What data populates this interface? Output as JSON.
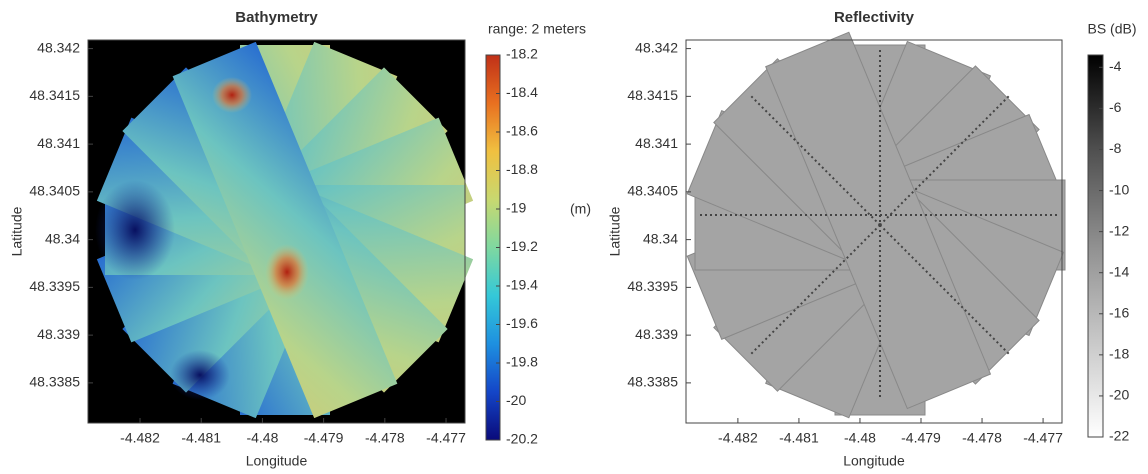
{
  "chart_data": [
    {
      "type": "heatmap",
      "title": "Bathymetry",
      "xlabel": "Longitude",
      "ylabel": "Latitude",
      "xlim": [
        -4.48285,
        -4.47669
      ],
      "xticks": [
        -4.482,
        -4.481,
        -4.48,
        -4.479,
        -4.478,
        -4.477
      ],
      "ylim": [
        48.33808,
        48.34209
      ],
      "yticks": [
        48.3385,
        48.339,
        48.3395,
        48.34,
        48.3405,
        48.341,
        48.3415,
        48.342
      ],
      "annotation": "range: 2 meters",
      "colorbar": {
        "label": "(m)",
        "lim": [
          -20.2,
          -18.2
        ],
        "ticks": [
          -18.2,
          -18.4,
          -18.6,
          -18.8,
          -19,
          -19.2,
          -19.4,
          -19.6,
          -19.8,
          -20,
          -20.2
        ],
        "colormap": [
          "#0a0a7a",
          "#1446c8",
          "#1e90e0",
          "#34c8d8",
          "#7fd8a0",
          "#c8d870",
          "#f0c040",
          "#e87020",
          "#c03018"
        ]
      }
    },
    {
      "type": "heatmap",
      "title": "Reflectivity",
      "xlabel": "Longitude",
      "ylabel": "Latitude",
      "xlim": [
        -4.48285,
        -4.47669
      ],
      "xticks": [
        -4.482,
        -4.481,
        -4.48,
        -4.479,
        -4.478,
        -4.477
      ],
      "ylim": [
        48.33808,
        48.34209
      ],
      "yticks": [
        48.3385,
        48.339,
        48.3395,
        48.34,
        48.3405,
        48.341,
        48.3415,
        48.342
      ],
      "colorbar": {
        "label": "BS (dB)",
        "lim": [
          -22,
          -3.4
        ],
        "ticks": [
          -4,
          -6,
          -8,
          -10,
          -12,
          -14,
          -16,
          -18,
          -20,
          -22
        ],
        "colormap": [
          "#ffffff",
          "#c8c8c8",
          "#909090",
          "#505050",
          "#000000"
        ]
      }
    }
  ]
}
